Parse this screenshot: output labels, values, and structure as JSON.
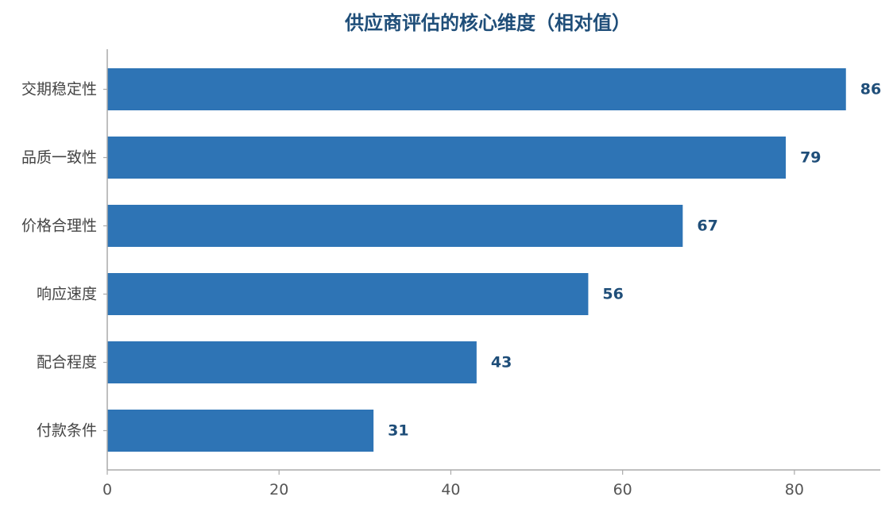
{
  "chart_data": {
    "type": "bar",
    "orientation": "horizontal",
    "title": "供应商评估的核心维度（相对值）",
    "xlabel": "",
    "ylabel": "",
    "categories": [
      "交期稳定性",
      "品质一致性",
      "价格合理性",
      "响应速度",
      "配合程度",
      "付款条件"
    ],
    "values": [
      86,
      79,
      67,
      56,
      43,
      31
    ],
    "xlim": [
      0,
      90
    ],
    "xticks": [
      0,
      20,
      40,
      60,
      80
    ],
    "grid": false,
    "legend": "none",
    "colors": {
      "bar": "#2e74b5",
      "title": "#1f4e79",
      "value_label": "#1f4e79",
      "axis": "#aaaaaa"
    }
  }
}
